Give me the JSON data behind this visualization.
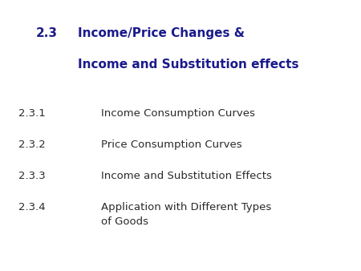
{
  "title_number": "2.3",
  "title_line1": "Income/Price Changes &",
  "title_line2": "Income and Substitution effects",
  "title_color": "#1a1a8c",
  "items": [
    {
      "number": "2.3.1",
      "text": "Income Consumption Curves"
    },
    {
      "number": "2.3.2",
      "text": "Price Consumption Curves"
    },
    {
      "number": "2.3.3",
      "text": "Income and Substitution Effects"
    },
    {
      "number": "2.3.4",
      "text": "Application with Different Types\nof Goods"
    }
  ],
  "item_number_color": "#2a2a2a",
  "item_text_color": "#2a2a2a",
  "background_color": "#ffffff",
  "title_fontsize": 11,
  "item_fontsize": 9.5
}
